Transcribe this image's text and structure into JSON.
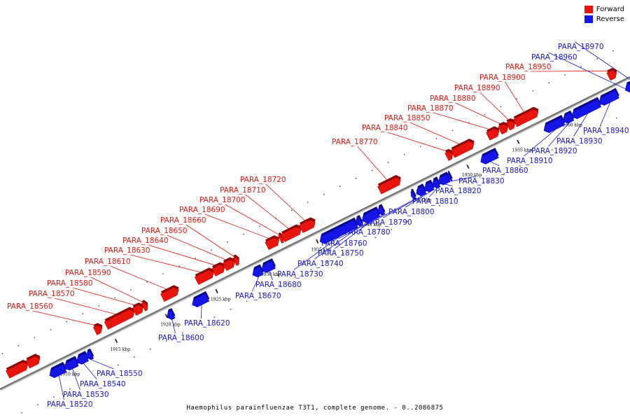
{
  "legend": {
    "forward_label": "Forward",
    "reverse_label": "Reverse"
  },
  "caption": "Haemophilus parainfluenzae T3T1, complete genome. - 0..2086875",
  "colors": {
    "forward": "#e8140e",
    "reverse": "#1515e6",
    "axis": "#777777",
    "tick": "#111111"
  },
  "chart_data": {
    "type": "diagram",
    "axis_unit": "kbp",
    "axis_range": [
      1905,
      1966
    ],
    "axis_ticks": [
      {
        "kbp": 1910,
        "label": "1910 kbp"
      },
      {
        "kbp": 1915,
        "label": "1915 kbp"
      },
      {
        "kbp": 1920,
        "label": "1920 kbp"
      },
      {
        "kbp": 1925,
        "label": "1925 kbp"
      },
      {
        "kbp": 1930,
        "label": "1930 kbp"
      },
      {
        "kbp": 1935,
        "label": "1935 kbp"
      },
      {
        "kbp": 1940,
        "label": "1940 kbp"
      },
      {
        "kbp": 1945,
        "label": "1945 kbp"
      },
      {
        "kbp": 1950,
        "label": "1950 kbp"
      },
      {
        "kbp": 1955,
        "label": "1955 kbp"
      },
      {
        "kbp": 1960,
        "label": "1960 kbp"
      }
    ],
    "genes": [
      {
        "name": "",
        "strand": "forward",
        "start": 1905.0,
        "end": 1907.0
      },
      {
        "name": "",
        "strand": "forward",
        "start": 1907.0,
        "end": 1908.2
      },
      {
        "name": "PARA_18520",
        "strand": "reverse",
        "start": 1908.3,
        "end": 1909.8
      },
      {
        "name": "PARA_18530",
        "strand": "reverse",
        "start": 1909.8,
        "end": 1911.0
      },
      {
        "name": "PARA_18540",
        "strand": "reverse",
        "start": 1911.0,
        "end": 1912.0
      },
      {
        "name": "PARA_18550",
        "strand": "reverse",
        "start": 1912.0,
        "end": 1912.5
      },
      {
        "name": "PARA_18560",
        "strand": "forward",
        "start": 1913.7,
        "end": 1914.4
      },
      {
        "name": "PARA_18570",
        "strand": "forward",
        "start": 1914.8,
        "end": 1917.6
      },
      {
        "name": "PARA_18580",
        "strand": "forward",
        "start": 1917.6,
        "end": 1918.5
      },
      {
        "name": "PARA_18590",
        "strand": "forward",
        "start": 1918.5,
        "end": 1918.9
      },
      {
        "name": "PARA_18600",
        "strand": "reverse",
        "start": 1920.0,
        "end": 1920.6
      },
      {
        "name": "PARA_18610",
        "strand": "forward",
        "start": 1920.4,
        "end": 1922.0
      },
      {
        "name": "PARA_18620",
        "strand": "reverse",
        "start": 1922.5,
        "end": 1924.0
      },
      {
        "name": "PARA_18630",
        "strand": "forward",
        "start": 1923.8,
        "end": 1925.5
      },
      {
        "name": "PARA_18640",
        "strand": "forward",
        "start": 1925.5,
        "end": 1926.6
      },
      {
        "name": "PARA_18650",
        "strand": "forward",
        "start": 1926.6,
        "end": 1927.6
      },
      {
        "name": "PARA_18660",
        "strand": "forward",
        "start": 1927.6,
        "end": 1928.0
      },
      {
        "name": "PARA_18670",
        "strand": "reverse",
        "start": 1928.5,
        "end": 1929.4
      },
      {
        "name": "PARA_18680",
        "strand": "reverse",
        "start": 1929.4,
        "end": 1930.6
      },
      {
        "name": "PARA_18690",
        "strand": "forward",
        "start": 1930.8,
        "end": 1932.0
      },
      {
        "name": "PARA_18700",
        "strand": "forward",
        "start": 1932.1,
        "end": 1932.4
      },
      {
        "name": "PARA_18710",
        "strand": "forward",
        "start": 1932.4,
        "end": 1934.2
      },
      {
        "name": "PARA_18720",
        "strand": "forward",
        "start": 1934.2,
        "end": 1935.6
      },
      {
        "name": "PARA_18730",
        "strand": "reverse",
        "start": 1935.2,
        "end": 1938.8
      },
      {
        "name": "PARA_18740",
        "strand": "reverse",
        "start": 1938.8,
        "end": 1939.3
      },
      {
        "name": "PARA_18750",
        "strand": "reverse",
        "start": 1939.4,
        "end": 1941.0
      },
      {
        "name": "PARA_18760",
        "strand": "reverse",
        "start": 1941.0,
        "end": 1941.5
      },
      {
        "name": "PARA_18770",
        "strand": "forward",
        "start": 1942.0,
        "end": 1944.1
      },
      {
        "name": "PARA_18780",
        "strand": "reverse",
        "start": 1944.3,
        "end": 1944.6
      },
      {
        "name": "PARA_18790",
        "strand": "reverse",
        "start": 1944.8,
        "end": 1945.6
      },
      {
        "name": "PARA_18800",
        "strand": "reverse",
        "start": 1945.6,
        "end": 1946.4
      },
      {
        "name": "PARA_18810",
        "strand": "reverse",
        "start": 1946.4,
        "end": 1947.0
      },
      {
        "name": "PARA_18820",
        "strand": "reverse",
        "start": 1947.0,
        "end": 1948.0
      },
      {
        "name": "PARA_18830",
        "strand": "reverse",
        "start": 1948.0,
        "end": 1948.2
      },
      {
        "name": "PARA_18840",
        "strand": "forward",
        "start": 1948.7,
        "end": 1949.3
      },
      {
        "name": "PARA_18850",
        "strand": "forward",
        "start": 1949.3,
        "end": 1951.4
      },
      {
        "name": "PARA_18860",
        "strand": "reverse",
        "start": 1951.2,
        "end": 1952.8
      },
      {
        "name": "PARA_18870",
        "strand": "forward",
        "start": 1952.8,
        "end": 1953.9
      },
      {
        "name": "PARA_18880",
        "strand": "forward",
        "start": 1954.0,
        "end": 1954.8
      },
      {
        "name": "PARA_18890",
        "strand": "forward",
        "start": 1954.8,
        "end": 1955.5
      },
      {
        "name": "PARA_18900",
        "strand": "forward",
        "start": 1955.5,
        "end": 1957.8
      },
      {
        "name": "PARA_18910",
        "strand": "reverse",
        "start": 1957.5,
        "end": 1959.4
      },
      {
        "name": "PARA_18920",
        "strand": "reverse",
        "start": 1959.4,
        "end": 1960.3
      },
      {
        "name": "PARA_18930",
        "strand": "reverse",
        "start": 1960.3,
        "end": 1963.0
      },
      {
        "name": "PARA_18940",
        "strand": "reverse",
        "start": 1963.0,
        "end": 1964.8
      },
      {
        "name": "PARA_18950",
        "strand": "forward",
        "start": 1964.8,
        "end": 1965.6
      },
      {
        "name": "PARA_18960",
        "strand": "reverse",
        "start": 1965.6,
        "end": 1966.5
      },
      {
        "name": "PARA_18970",
        "strand": "reverse",
        "start": 1966.5,
        "end": 1967.5
      }
    ]
  }
}
